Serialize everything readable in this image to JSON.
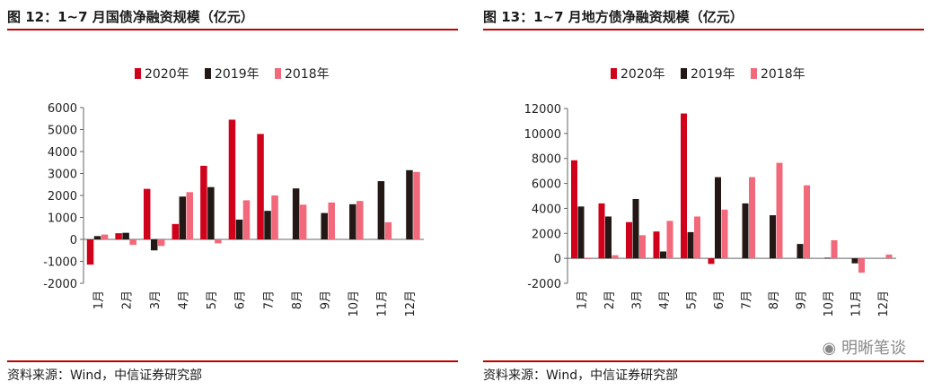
{
  "panels": [
    {
      "title": "图 12：1~7 月国债净融资规模（亿元）",
      "source": "资料来源：Wind，中信证券研究部",
      "chart_data": {
        "type": "bar",
        "categories": [
          "1月",
          "2月",
          "3月",
          "4月",
          "5月",
          "6月",
          "7月",
          "8月",
          "9月",
          "10月",
          "11月",
          "12月"
        ],
        "series": [
          {
            "name": "2020年",
            "color": "#d0021b",
            "values": [
              -1150,
              280,
              2300,
              700,
              3350,
              5450,
              4800,
              null,
              null,
              null,
              null,
              null
            ]
          },
          {
            "name": "2019年",
            "color": "#231815",
            "values": [
              150,
              300,
              -500,
              1950,
              2380,
              900,
              1300,
              2320,
              1200,
              1600,
              2650,
              3150
            ]
          },
          {
            "name": "2018年",
            "color": "#f1697a",
            "values": [
              220,
              -250,
              -300,
              2150,
              -180,
              1780,
              2000,
              1580,
              1680,
              1750,
              780,
              3070
            ]
          }
        ],
        "ylim": [
          -2000,
          6000
        ],
        "yticks": [
          -2000,
          -1000,
          0,
          1000,
          2000,
          3000,
          4000,
          5000,
          6000
        ],
        "legend_position": "top-center",
        "grid": false
      }
    },
    {
      "title": "图 13：1~7 月地方债净融资规模（亿元）",
      "source": "资料来源：Wind，中信证券研究部",
      "chart_data": {
        "type": "bar",
        "categories": [
          "1月",
          "2月",
          "3月",
          "4月",
          "5月",
          "6月",
          "7月",
          "8月",
          "9月",
          "10月",
          "11月",
          "12月"
        ],
        "series": [
          {
            "name": "2020年",
            "color": "#d0021b",
            "values": [
              7850,
              4400,
              2900,
              2150,
              11600,
              -450,
              null,
              null,
              null,
              null,
              null,
              null
            ]
          },
          {
            "name": "2019年",
            "color": "#231815",
            "values": [
              4150,
              3350,
              4750,
              550,
              2100,
              6500,
              4400,
              3450,
              1150,
              50,
              -400,
              null
            ]
          },
          {
            "name": "2018年",
            "color": "#f1697a",
            "values": [
              0,
              250,
              1850,
              3000,
              3350,
              3900,
              6500,
              7650,
              5850,
              1450,
              -1150,
              300
            ]
          }
        ],
        "ylim": [
          -2000,
          12000
        ],
        "yticks": [
          -2000,
          0,
          2000,
          4000,
          6000,
          8000,
          10000,
          12000
        ],
        "legend_position": "top-center",
        "grid": false
      }
    }
  ],
  "watermark": "明晰笔谈"
}
